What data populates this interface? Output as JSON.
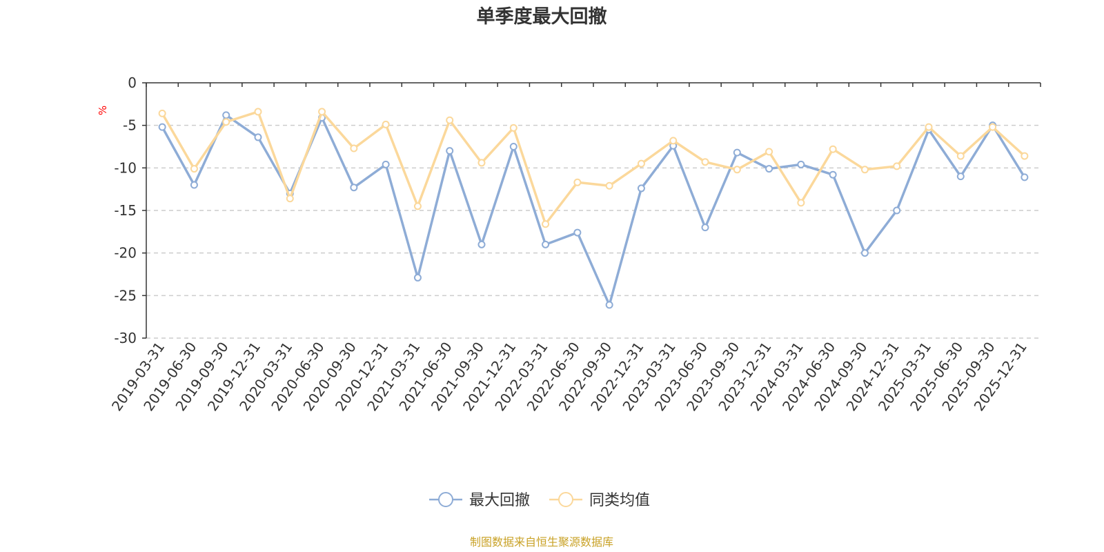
{
  "chart_data": {
    "type": "line",
    "title": "单季度最大回撤",
    "ylabel": "%",
    "ylim": [
      -30,
      0
    ],
    "yticks": [
      0,
      -5,
      -10,
      -15,
      -20,
      -25,
      -30
    ],
    "grid": true,
    "legend_position": "bottom",
    "categories": [
      "2019-03-31",
      "2019-06-30",
      "2019-09-30",
      "2019-12-31",
      "2020-03-31",
      "2020-06-30",
      "2020-09-30",
      "2020-12-31",
      "2021-03-31",
      "2021-06-30",
      "2021-09-30",
      "2021-12-31",
      "2022-03-31",
      "2022-06-30",
      "2022-09-30",
      "2022-12-31",
      "2023-03-31",
      "2023-06-30",
      "2023-09-30",
      "2023-12-31",
      "2024-03-31",
      "2024-06-30",
      "2024-09-30",
      "2024-12-31",
      "2025-03-31",
      "2025-06-30",
      "2025-09-30",
      "2025-12-31"
    ],
    "series": [
      {
        "name": "最大回撤",
        "color": "#8eacd6",
        "values": [
          -5.2,
          -12.0,
          -3.8,
          -6.4,
          -13.0,
          -4.1,
          -12.3,
          -9.6,
          -22.9,
          -8.0,
          -19.0,
          -7.5,
          -19.0,
          -17.6,
          -26.1,
          -12.4,
          -7.4,
          -17.0,
          -8.2,
          -10.1,
          -9.6,
          -10.8,
          -20.0,
          -15.0,
          -5.5,
          -11.0,
          -5.0,
          -11.1
        ]
      },
      {
        "name": "同类均值",
        "color": "#fbd89b",
        "values": [
          -3.6,
          -10.1,
          -4.6,
          -3.4,
          -13.6,
          -3.4,
          -7.7,
          -4.9,
          -14.5,
          -4.4,
          -9.4,
          -5.3,
          -16.6,
          -11.7,
          -12.1,
          -9.5,
          -6.8,
          -9.3,
          -10.2,
          -8.1,
          -14.1,
          -7.8,
          -10.2,
          -9.8,
          -5.2,
          -8.6,
          -5.2,
          -8.6
        ]
      }
    ]
  },
  "footer": {
    "source": "制图数据来自恒生聚源数据库"
  }
}
